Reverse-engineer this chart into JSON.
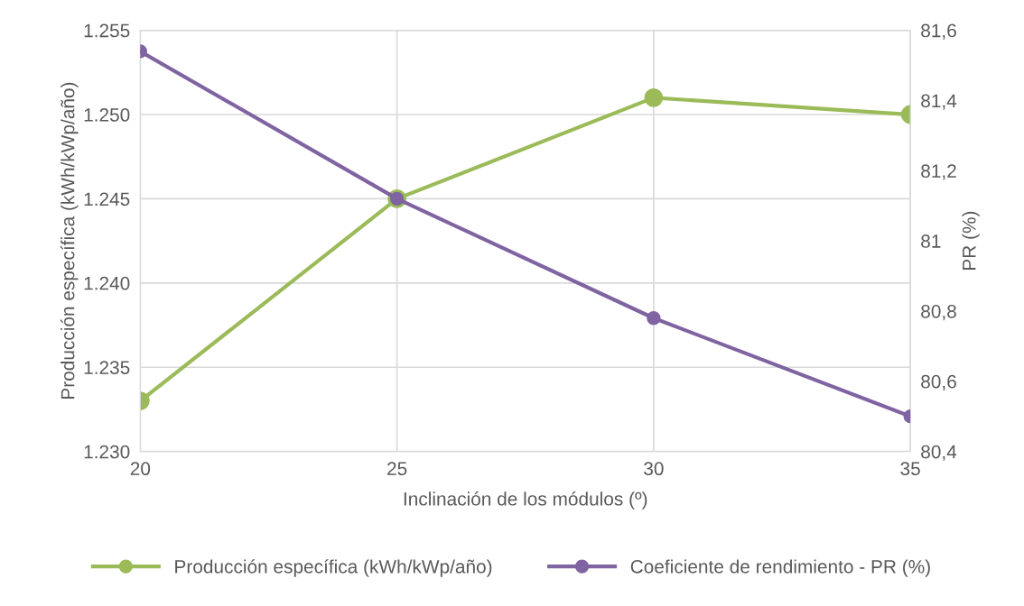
{
  "chart_data": {
    "type": "line",
    "xlabel": "Inclinación de los módulos (º)",
    "ylabel": "Producción específica (kWh/kWp/año)",
    "y2label": "PR (%)",
    "x": [
      20,
      25,
      30,
      35
    ],
    "series": [
      {
        "name": "Producción específica (kWh/kWp/año)",
        "color": "#9bbb59",
        "values": [
          1233,
          1245,
          1251,
          1250
        ]
      },
      {
        "name": "Coeficiente de rendimiento - PR (%)",
        "color": "#8064a2",
        "values": [
          81.54,
          81.12,
          80.78,
          80.5
        ],
        "axis": "y2"
      }
    ],
    "xlim": [
      20,
      35
    ],
    "xticks": [
      20,
      25,
      30,
      35
    ],
    "ylim": [
      1230,
      1255
    ],
    "yticks": [
      {
        "value": 1230,
        "label": "1.230"
      },
      {
        "value": 1235,
        "label": "1.235"
      },
      {
        "value": 1240,
        "label": "1.240"
      },
      {
        "value": 1245,
        "label": "1.245"
      },
      {
        "value": 1250,
        "label": "1.250"
      },
      {
        "value": 1255,
        "label": "1.255"
      }
    ],
    "y2lim": [
      80.4,
      81.6
    ],
    "y2ticks": [
      {
        "value": 80.4,
        "label": "80,4"
      },
      {
        "value": 80.6,
        "label": "80,6"
      },
      {
        "value": 80.8,
        "label": "80,8"
      },
      {
        "value": 81,
        "label": "81"
      },
      {
        "value": 81.2,
        "label": "81,2"
      },
      {
        "value": 81.4,
        "label": "81,4"
      },
      {
        "value": 81.6,
        "label": "81,6"
      }
    ],
    "grid": true,
    "legend": "bottom",
    "marker": "circle",
    "line_style": "solid"
  }
}
